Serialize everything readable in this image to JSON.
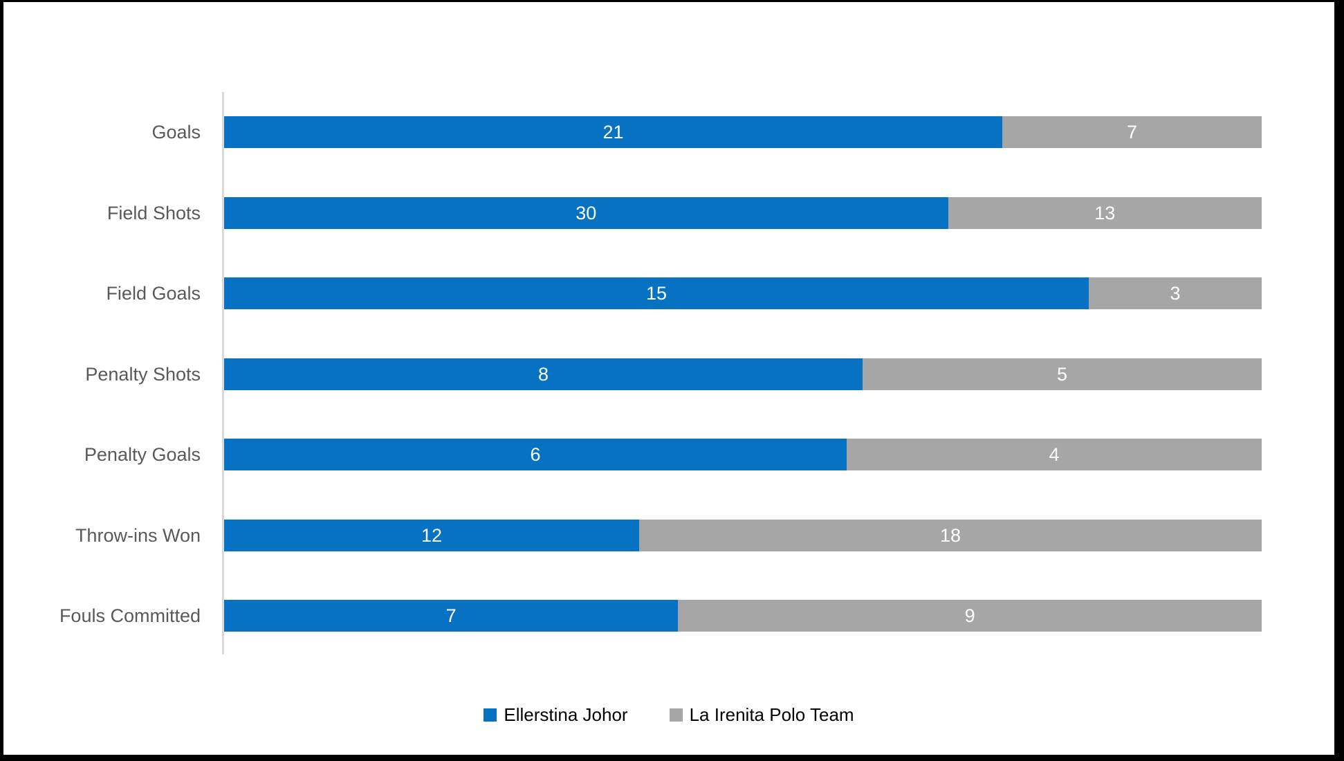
{
  "frame": {
    "background": "#ffffff",
    "border_color": "#000000"
  },
  "chart_data": {
    "type": "bar",
    "subtype": "horizontal-stacked-100",
    "title": "",
    "categories": [
      "Goals",
      "Field Shots",
      "Field Goals",
      "Penalty Shots",
      "Penalty Goals",
      "Throw-ins Won",
      "Fouls Committed"
    ],
    "series": [
      {
        "name": "Ellerstina Johor",
        "color": "#0872C2",
        "values": [
          21,
          30,
          15,
          8,
          6,
          12,
          7
        ]
      },
      {
        "name": "La Irenita Polo Team",
        "color": "#A6A6A6",
        "values": [
          7,
          13,
          3,
          5,
          4,
          18,
          9
        ]
      }
    ],
    "value_label_color": "#ffffff",
    "category_label_color": "#595959",
    "axis_line_color": "#D9D9D9",
    "grid": false,
    "legend_position": "bottom-center"
  }
}
